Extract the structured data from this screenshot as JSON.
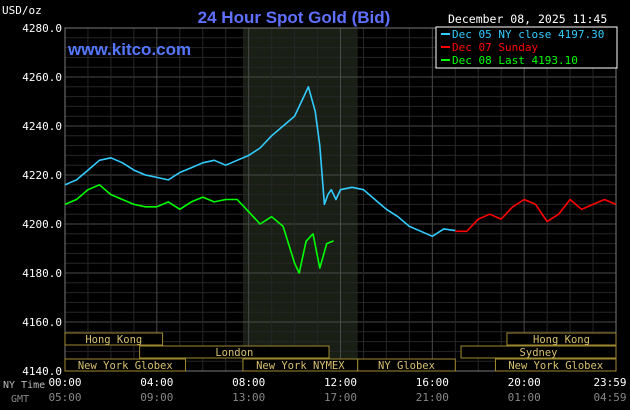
{
  "chart_data": {
    "type": "line",
    "title": "24 Hour Spot Gold (Bid)",
    "watermark": "www.kitco.com",
    "date_label": "December 08, 2025 11:45",
    "ylabel": "USD/oz",
    "ylim": [
      4140,
      4280
    ],
    "yticks": [
      "4280.0",
      "4260.0",
      "4240.0",
      "4220.0",
      "4200.0",
      "4180.0",
      "4160.0",
      "4140.0"
    ],
    "xlim": [
      0,
      24
    ],
    "x_row_label": "NY Time",
    "x2_row_label": "GMT",
    "xtick_ny": [
      "00:00",
      "04:00",
      "08:00",
      "12:00",
      "16:00",
      "20:00",
      "23:59"
    ],
    "xtick_gmt": [
      "05:00",
      "09:00",
      "13:00",
      "17:00",
      "21:00",
      "01:00",
      "04:59"
    ],
    "grid": true,
    "highlight_range": [
      7.75,
      12.75
    ],
    "legend_position": "top-right",
    "legend": [
      {
        "label": "Dec 05 NY close 4197.30",
        "color": "#33ccff"
      },
      {
        "label": "Dec 07 Sunday",
        "color": "#ff0000"
      },
      {
        "label": "Dec 08 Last 4193.10",
        "color": "#00ff00"
      }
    ],
    "series": [
      {
        "name": "Dec 05 NY close 4197.30",
        "color": "#33ccff",
        "x": [
          0,
          0.5,
          1,
          1.5,
          2,
          2.5,
          3,
          3.5,
          4,
          4.5,
          5,
          5.5,
          6,
          6.5,
          7,
          7.5,
          8,
          8.5,
          9,
          9.5,
          10,
          10.3,
          10.6,
          10.9,
          11.1,
          11.3,
          11.45,
          11.6,
          11.8,
          12,
          12.5,
          13,
          13.5,
          14,
          14.5,
          15,
          15.5,
          16,
          16.5,
          17
        ],
        "y": [
          4216,
          4218,
          4222,
          4226,
          4227,
          4225,
          4222,
          4220,
          4219,
          4218,
          4221,
          4223,
          4225,
          4226,
          4224,
          4226,
          4228,
          4231,
          4236,
          4240,
          4244,
          4250,
          4256,
          4246,
          4232,
          4208,
          4212,
          4214,
          4210,
          4214,
          4215,
          4214,
          4210,
          4206,
          4203,
          4199,
          4197,
          4195,
          4198,
          4197.3
        ]
      },
      {
        "name": "Dec 07 Sunday",
        "color": "#ff0000",
        "x": [
          17,
          17.5,
          18,
          18.5,
          19,
          19.5,
          20,
          20.5,
          21,
          21.5,
          22,
          22.5,
          23,
          23.5,
          23.99
        ],
        "y": [
          4197,
          4197,
          4202,
          4204,
          4202,
          4207,
          4210,
          4208,
          4201,
          4204,
          4210,
          4206,
          4208,
          4210,
          4208
        ]
      },
      {
        "name": "Dec 08 Last 4193.10",
        "color": "#00ff00",
        "x": [
          0,
          0.5,
          1,
          1.5,
          2,
          2.5,
          3,
          3.5,
          4,
          4.5,
          5,
          5.5,
          6,
          6.5,
          7,
          7.5,
          8,
          8.5,
          9,
          9.5,
          10,
          10.2,
          10.5,
          10.8,
          11.1,
          11.4,
          11.7
        ],
        "y": [
          4208,
          4210,
          4214,
          4216,
          4212,
          4210,
          4208,
          4207,
          4207,
          4209,
          4206,
          4209,
          4211,
          4209,
          4210,
          4210,
          4205,
          4200,
          4203,
          4199,
          4184,
          4180,
          4193,
          4196,
          4182,
          4192,
          4193.1
        ]
      }
    ],
    "sessions": [
      {
        "label": "Hong Kong",
        "start": 0,
        "end": 4.25,
        "row": 0
      },
      {
        "label": "Hong Kong",
        "start": 19.25,
        "end": 24,
        "row": 0
      },
      {
        "label": "London",
        "start": 3.25,
        "end": 11.5,
        "row": 1
      },
      {
        "label": "Sydney",
        "start": 17.25,
        "end": 24,
        "row": 1
      },
      {
        "label": "New York Globex",
        "start": 0,
        "end": 5.25,
        "row": 2
      },
      {
        "label": "New York NYMEX",
        "start": 7.75,
        "end": 12.75,
        "row": 2
      },
      {
        "label": "NY Globex",
        "start": 12.75,
        "end": 17,
        "row": 2
      },
      {
        "label": "New York Globex",
        "start": 18.75,
        "end": 24,
        "row": 2
      }
    ]
  }
}
